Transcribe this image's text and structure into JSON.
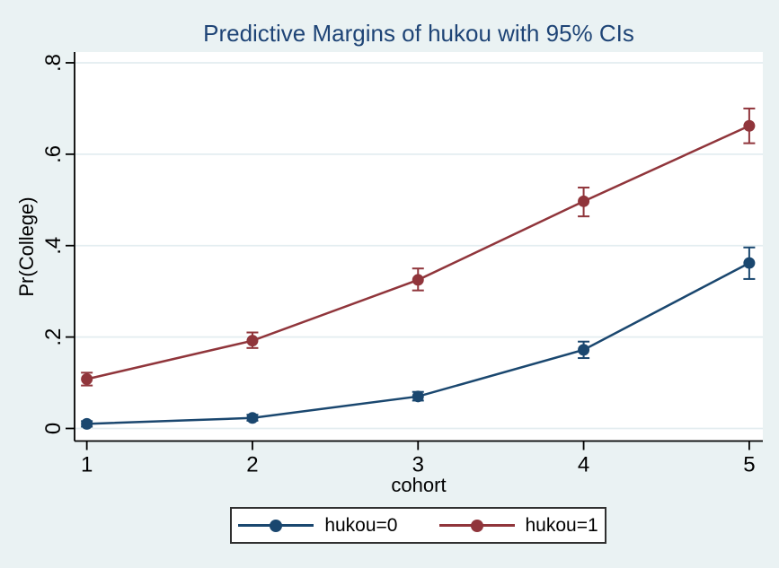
{
  "window": {
    "title": "Predictive Margins of hukou with 95% CIs"
  },
  "colors": {
    "background": "#eaf2f3",
    "plot_background": "#ffffff",
    "gridline": "#e3edf0",
    "axis": "#000000",
    "title_text": "#1e4476",
    "navy": "#1a476f",
    "maroon": "#90353b",
    "legend_border": "#303030"
  },
  "chart_data": {
    "type": "line",
    "title": "Predictive Margins of hukou with 95% CIs",
    "xlabel": "cohort",
    "ylabel": "Pr(College)",
    "x": [
      1,
      2,
      3,
      4,
      5
    ],
    "xticks": {
      "values": [
        1,
        2,
        3,
        4,
        5
      ],
      "labels": [
        "1",
        "2",
        "3",
        "4",
        "5"
      ]
    },
    "yticks": {
      "values": [
        0,
        0.2,
        0.4,
        0.6,
        0.8
      ],
      "labels": [
        "0",
        ".2",
        ".4",
        ".6",
        ".8"
      ]
    },
    "xlim": [
      0.926,
      5.082
    ],
    "ylim": [
      -0.0275,
      0.8235
    ],
    "grid": "horizontal",
    "legend_position": "bottom",
    "error_bars": "95% CI",
    "series": [
      {
        "name": "hukou=0",
        "color": "#1a476f",
        "values": [
          0.01,
          0.023,
          0.07,
          0.172,
          0.362
        ],
        "ci_low": [
          0.004,
          0.017,
          0.061,
          0.154,
          0.327
        ],
        "ci_high": [
          0.016,
          0.03,
          0.08,
          0.19,
          0.396
        ]
      },
      {
        "name": "hukou=1",
        "color": "#90353b",
        "values": [
          0.108,
          0.192,
          0.325,
          0.497,
          0.662
        ],
        "ci_low": [
          0.094,
          0.176,
          0.302,
          0.464,
          0.624
        ],
        "ci_high": [
          0.122,
          0.21,
          0.35,
          0.527,
          0.7
        ]
      }
    ]
  },
  "legend": {
    "items": [
      {
        "label": "hukou=0"
      },
      {
        "label": "hukou=1"
      }
    ]
  }
}
